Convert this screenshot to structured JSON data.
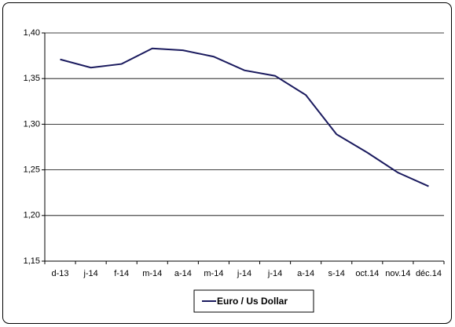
{
  "chart_data": {
    "type": "line",
    "categories": [
      "d-13",
      "j-14",
      "f-14",
      "m-14",
      "a-14",
      "m-14",
      "j-14",
      "j-14",
      "a-14",
      "s-14",
      "oct.14",
      "nov.14",
      "déc.14"
    ],
    "series": [
      {
        "name": "Euro / Us Dollar",
        "color": "#1a1a5e",
        "values": [
          1.371,
          1.362,
          1.366,
          1.383,
          1.381,
          1.374,
          1.359,
          1.353,
          1.332,
          1.289,
          1.269,
          1.247,
          1.232
        ]
      }
    ],
    "ylim": [
      1.15,
      1.4
    ],
    "yticks": [
      {
        "value": 1.15,
        "label": "1,15"
      },
      {
        "value": 1.2,
        "label": "1,20"
      },
      {
        "value": 1.25,
        "label": "1,25"
      },
      {
        "value": 1.3,
        "label": "1,30"
      },
      {
        "value": 1.35,
        "label": "1,35"
      },
      {
        "value": 1.4,
        "label": "1,40"
      }
    ],
    "grid": true,
    "legend": "bottom"
  }
}
